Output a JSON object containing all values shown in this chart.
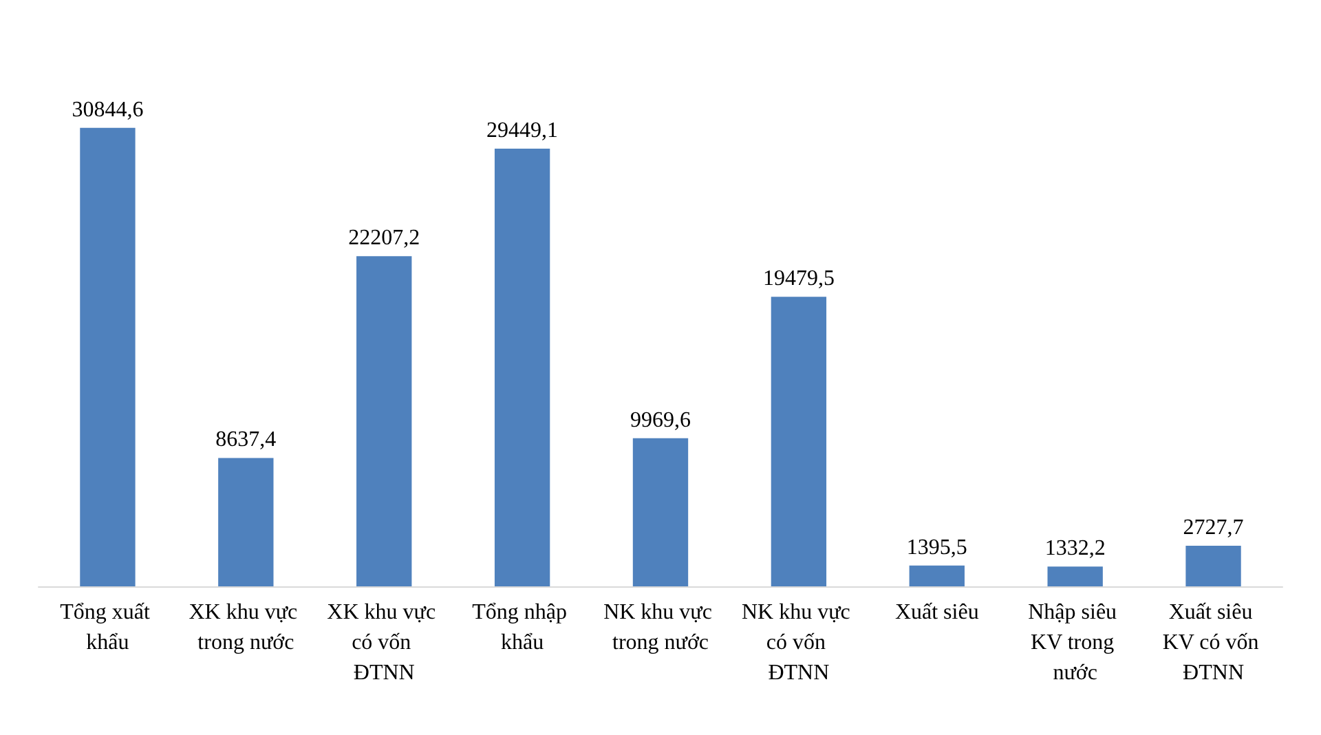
{
  "chart_data": {
    "type": "bar",
    "categories": [
      "Tổng xuất khẩu",
      "XK khu vực trong nước",
      "XK khu vực có vốn ĐTNN",
      "Tổng nhập khẩu",
      "NK khu vực trong nước",
      "NK khu vực có vốn ĐTNN",
      "Xuất siêu",
      "Nhập siêu KV trong nước",
      "Xuất siêu KV có vốn ĐTNN"
    ],
    "values": [
      30844.6,
      8637.4,
      22207.2,
      29449.1,
      9969.6,
      19479.5,
      1395.5,
      1332.2,
      2727.7
    ],
    "value_labels": [
      "30844,6",
      "8637,4",
      "22207,2",
      "29449,1",
      "9969,6",
      "19479,5",
      "1395,5",
      "1332,2",
      "2727,7"
    ],
    "color": "#4f81bd",
    "grid": false,
    "tick_labels": "x"
  }
}
